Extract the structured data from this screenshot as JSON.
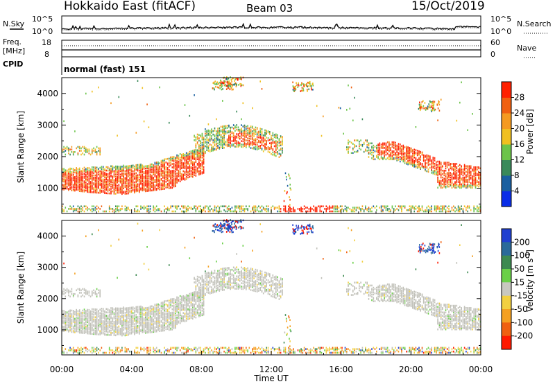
{
  "header": {
    "radar": "Hokkaido East (fitACF)",
    "beam": "Beam 03",
    "date": "15/Oct/2019"
  },
  "noise_panel": {
    "left_label": "N.Sky",
    "right_label": "N.Search",
    "left_ticks": [
      "10^5",
      "10^0"
    ],
    "right_ticks": [
      "10^5",
      "10^0"
    ]
  },
  "freq_panel": {
    "left_label_line1": "Freq.",
    "left_label_line2": "[MHz]",
    "left_ticks": [
      "18",
      "8"
    ],
    "right_label": "Nave",
    "right_ticks": [
      "60",
      "0"
    ]
  },
  "cpid_panel": {
    "label": "CPID",
    "text": "normal (fast) 151"
  },
  "colors": {
    "power_scale": [
      "#0a2ee8",
      "#1a5fa0",
      "#3a8a5a",
      "#6cc44a",
      "#f0c020",
      "#f59a20",
      "#f06010",
      "#ff2000"
    ],
    "velocity_scale": [
      "#2040d0",
      "#2a6a9a",
      "#3d8a50",
      "#6ad048",
      "#c8c8c0",
      "#f2d040",
      "#f5a020",
      "#f06010",
      "#ff1a00"
    ],
    "ground_scatter": "#c0c0b8"
  },
  "chart_data": [
    {
      "type": "heatmap",
      "panel": "power",
      "ylabel": "Slant Range [km]",
      "yticks": [
        "1000",
        "2000",
        "3000",
        "4000"
      ],
      "ylim": [
        200,
        4500
      ],
      "xlim": [
        0,
        24
      ],
      "colorbar_label": "Power [dB]",
      "colorbar_ticks": [
        "4",
        "8",
        "12",
        "16",
        "20",
        "24",
        "28"
      ],
      "colorbar_range": [
        0,
        32
      ]
    },
    {
      "type": "heatmap",
      "panel": "velocity",
      "ylabel": "Slant Range [km]",
      "yticks": [
        "1000",
        "2000",
        "3000",
        "4000"
      ],
      "ylim": [
        200,
        4500
      ],
      "xlim": [
        0,
        24
      ],
      "colorbar_label": "Velocity [m s^-1]",
      "colorbar_ticks": [
        "200",
        "100",
        "50",
        "15",
        "-15",
        "-50",
        "-100",
        "-200"
      ]
    }
  ],
  "xaxis": {
    "ticks": [
      "00:00",
      "04:00",
      "08:00",
      "12:00",
      "16:00",
      "20:00",
      "00:00"
    ],
    "label": "Time UT"
  }
}
